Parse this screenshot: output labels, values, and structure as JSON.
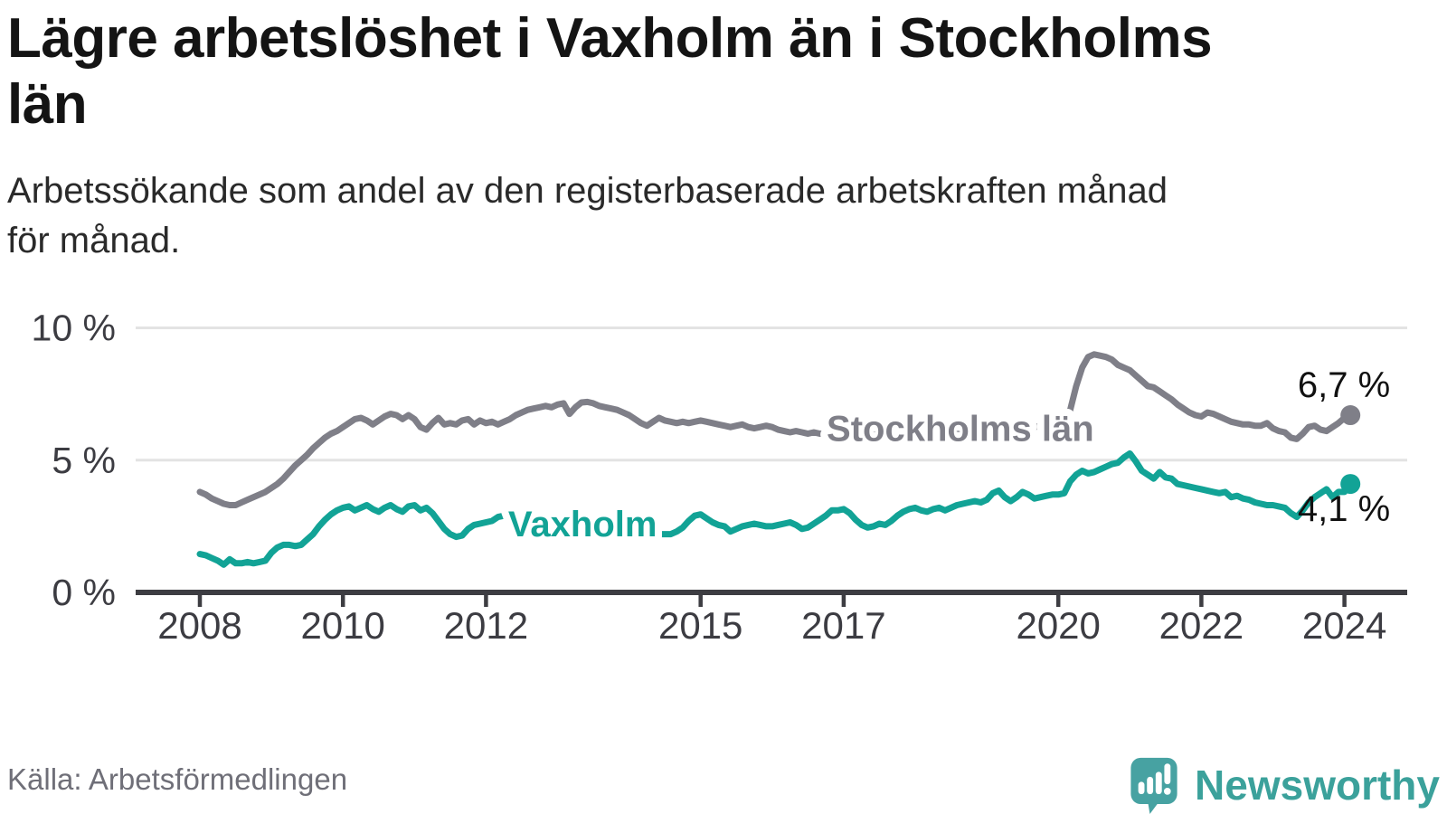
{
  "header": {
    "title": "Lägre arbetslöshet i Vaxholm än i Stockholms\nlän",
    "subtitle": "Arbetssökande som andel av den registerbaserade arbetskraften månad\nför månad."
  },
  "footer": {
    "source": "Källa: Arbetsförmedlingen",
    "brand": "Newsworthy",
    "brand_icon": "newsworthy-speech-bubble-chart-icon",
    "brand_color": "#3ba19b",
    "brand_icon_color": "#47a2a2"
  },
  "chart_data": {
    "type": "line",
    "title": "Lägre arbetslöshet i Vaxholm än i Stockholms län",
    "unit": "%",
    "x_start": "2008-01",
    "x_end": "2024-02",
    "grid": "horizontal-only",
    "background": "#ffffff",
    "gridline_color": "#e3e3e3",
    "axis_color": "#3d3d42",
    "tick_label_color": "#3c3c42",
    "y_axis": {
      "range": [
        0,
        10.5
      ],
      "ticks": [
        0,
        5,
        10
      ],
      "tick_labels": [
        "0 %",
        "5 %",
        "10 %"
      ]
    },
    "x_axis": {
      "tick_years": [
        2008,
        2010,
        2012,
        2015,
        2017,
        2020,
        2022,
        2024
      ]
    },
    "series": [
      {
        "name": "Stockholms län",
        "color": "#7f7f88",
        "end_value": 6.7,
        "end_label": "6,7 %",
        "end_label_position": "above",
        "inline_label": {
          "year": 2018.63,
          "value": 6.2
        },
        "values": [
          3.8,
          3.7,
          3.55,
          3.45,
          3.35,
          3.3,
          3.3,
          3.4,
          3.5,
          3.6,
          3.7,
          3.8,
          3.95,
          4.1,
          4.3,
          4.55,
          4.8,
          5.0,
          5.2,
          5.45,
          5.65,
          5.85,
          6.0,
          6.1,
          6.25,
          6.4,
          6.55,
          6.6,
          6.5,
          6.35,
          6.5,
          6.65,
          6.75,
          6.7,
          6.55,
          6.7,
          6.55,
          6.25,
          6.15,
          6.4,
          6.6,
          6.35,
          6.4,
          6.35,
          6.5,
          6.55,
          6.35,
          6.5,
          6.4,
          6.45,
          6.35,
          6.45,
          6.55,
          6.7,
          6.8,
          6.9,
          6.95,
          7.0,
          7.05,
          7.0,
          7.1,
          7.15,
          6.75,
          7.0,
          7.18,
          7.2,
          7.15,
          7.05,
          7.0,
          6.95,
          6.9,
          6.8,
          6.7,
          6.55,
          6.4,
          6.3,
          6.45,
          6.6,
          6.5,
          6.45,
          6.4,
          6.45,
          6.4,
          6.45,
          6.5,
          6.45,
          6.4,
          6.35,
          6.3,
          6.25,
          6.3,
          6.35,
          6.25,
          6.2,
          6.25,
          6.3,
          6.25,
          6.15,
          6.1,
          6.05,
          6.1,
          6.05,
          6.0,
          6.05,
          6.0,
          6.0,
          5.95,
          6.0,
          6.0,
          5.95,
          5.9,
          5.95,
          5.9,
          5.95,
          6.0,
          6.05,
          6.0,
          6.05,
          6.1,
          6.1,
          6.1,
          6.05,
          6.0,
          5.95,
          5.9,
          5.95,
          6.0,
          6.05,
          6.1,
          6.1,
          6.15,
          6.2,
          6.2,
          6.15,
          6.1,
          6.1,
          6.15,
          6.2,
          6.25,
          6.2,
          6.25,
          6.3,
          6.3,
          6.35,
          6.4,
          6.4,
          6.9,
          7.8,
          8.5,
          8.9,
          9.0,
          8.95,
          8.9,
          8.8,
          8.6,
          8.5,
          8.4,
          8.2,
          8.0,
          7.8,
          7.75,
          7.6,
          7.45,
          7.3,
          7.1,
          6.95,
          6.8,
          6.7,
          6.65,
          6.8,
          6.75,
          6.65,
          6.55,
          6.45,
          6.4,
          6.35,
          6.35,
          6.3,
          6.3,
          6.4,
          6.2,
          6.1,
          6.05,
          5.85,
          5.8,
          6.0,
          6.25,
          6.3,
          6.15,
          6.1,
          6.25,
          6.4,
          6.6,
          6.7
        ]
      },
      {
        "name": "Vaxholm",
        "color": "#12a396",
        "end_value": 4.1,
        "end_label": "4,1 %",
        "end_label_position": "below",
        "inline_label": {
          "year": 2013.35,
          "value": 2.6
        },
        "values": [
          1.45,
          1.4,
          1.3,
          1.2,
          1.05,
          1.25,
          1.1,
          1.1,
          1.15,
          1.1,
          1.15,
          1.2,
          1.5,
          1.7,
          1.8,
          1.8,
          1.75,
          1.8,
          2.0,
          2.2,
          2.5,
          2.75,
          2.95,
          3.1,
          3.2,
          3.25,
          3.1,
          3.2,
          3.3,
          3.15,
          3.05,
          3.2,
          3.3,
          3.15,
          3.05,
          3.25,
          3.3,
          3.1,
          3.2,
          3.0,
          2.7,
          2.4,
          2.2,
          2.1,
          2.15,
          2.4,
          2.55,
          2.6,
          2.65,
          2.7,
          2.85,
          2.9,
          3.0,
          3.05,
          2.95,
          2.9,
          2.85,
          2.8,
          2.75,
          2.7,
          2.7,
          2.65,
          2.6,
          2.55,
          2.5,
          2.45,
          2.4,
          2.35,
          2.3,
          2.3,
          2.25,
          2.2,
          2.2,
          2.15,
          2.1,
          2.15,
          2.2,
          2.2,
          2.2,
          2.2,
          2.3,
          2.45,
          2.7,
          2.9,
          2.95,
          2.8,
          2.65,
          2.55,
          2.5,
          2.3,
          2.4,
          2.5,
          2.55,
          2.6,
          2.55,
          2.5,
          2.5,
          2.55,
          2.6,
          2.65,
          2.55,
          2.4,
          2.45,
          2.6,
          2.75,
          2.9,
          3.1,
          3.1,
          3.15,
          3.0,
          2.75,
          2.55,
          2.45,
          2.5,
          2.6,
          2.55,
          2.7,
          2.9,
          3.05,
          3.15,
          3.2,
          3.1,
          3.05,
          3.15,
          3.2,
          3.1,
          3.2,
          3.3,
          3.35,
          3.4,
          3.45,
          3.4,
          3.5,
          3.75,
          3.85,
          3.6,
          3.45,
          3.6,
          3.8,
          3.7,
          3.55,
          3.6,
          3.65,
          3.7,
          3.7,
          3.75,
          4.2,
          4.45,
          4.6,
          4.5,
          4.55,
          4.65,
          4.75,
          4.85,
          4.9,
          5.1,
          5.25,
          4.95,
          4.6,
          4.45,
          4.3,
          4.55,
          4.35,
          4.3,
          4.1,
          4.05,
          4.0,
          3.95,
          3.9,
          3.85,
          3.8,
          3.75,
          3.8,
          3.6,
          3.65,
          3.55,
          3.5,
          3.4,
          3.35,
          3.3,
          3.3,
          3.25,
          3.2,
          3.0,
          2.85,
          3.1,
          3.4,
          3.6,
          3.75,
          3.9,
          3.6,
          3.8,
          3.8,
          4.1
        ]
      }
    ]
  }
}
